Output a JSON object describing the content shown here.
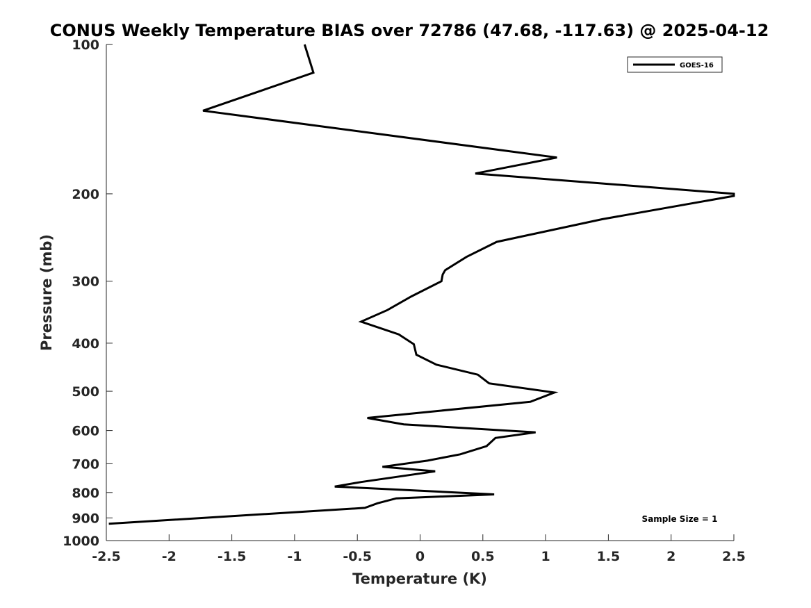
{
  "chart_data": {
    "type": "line",
    "title": "CONUS Weekly Temperature BIAS over 72786 (47.68, -117.63) @ 2025-04-12",
    "xlabel": "Temperature (K)",
    "ylabel": "Pressure (mb)",
    "xlim": [
      -2.5,
      2.5
    ],
    "ylim": [
      1000,
      100
    ],
    "y_scale": "log",
    "x_ticks": [
      -2.5,
      -2,
      -1.5,
      -1,
      -0.5,
      0,
      0.5,
      1,
      1.5,
      2,
      2.5
    ],
    "x_tick_labels": [
      "-2.5",
      "-2",
      "-1.5",
      "-1",
      "-0.5",
      "0",
      "0.5",
      "1",
      "1.5",
      "2",
      "2.5"
    ],
    "y_ticks": [
      100,
      200,
      300,
      400,
      500,
      600,
      700,
      800,
      900,
      1000
    ],
    "y_tick_labels": [
      "100",
      "200",
      "300",
      "400",
      "500",
      "600",
      "700",
      "800",
      "900",
      "1000"
    ],
    "grid": false,
    "legend_position": "top-right",
    "annotation": "Sample Size = 1",
    "series": [
      {
        "name": "GOES-16",
        "color": "#000000",
        "temperature": [
          -0.92,
          -0.85,
          -1.73,
          1.09,
          0.44,
          2.5,
          2.5,
          1.45,
          0.61,
          0.37,
          0.2,
          0.18,
          0.17,
          -0.07,
          -0.26,
          -0.47,
          -0.17,
          -0.05,
          -0.03,
          0.13,
          0.46,
          0.55,
          1.07,
          0.88,
          -0.42,
          -0.13,
          0.92,
          0.6,
          0.53,
          0.32,
          0.06,
          -0.3,
          0.12,
          -0.47,
          -0.68,
          0.59,
          -0.19,
          -0.34,
          -0.44,
          -2.48
        ],
        "pressure": [
          100,
          114,
          136,
          169,
          182,
          200,
          202,
          225,
          250,
          268,
          285,
          291,
          300,
          322,
          343,
          362,
          384,
          402,
          422,
          442,
          463,
          482,
          503,
          525,
          566,
          583,
          605,
          621,
          645,
          670,
          690,
          710,
          725,
          762,
          778,
          807,
          822,
          841,
          859,
          925
        ]
      }
    ]
  }
}
